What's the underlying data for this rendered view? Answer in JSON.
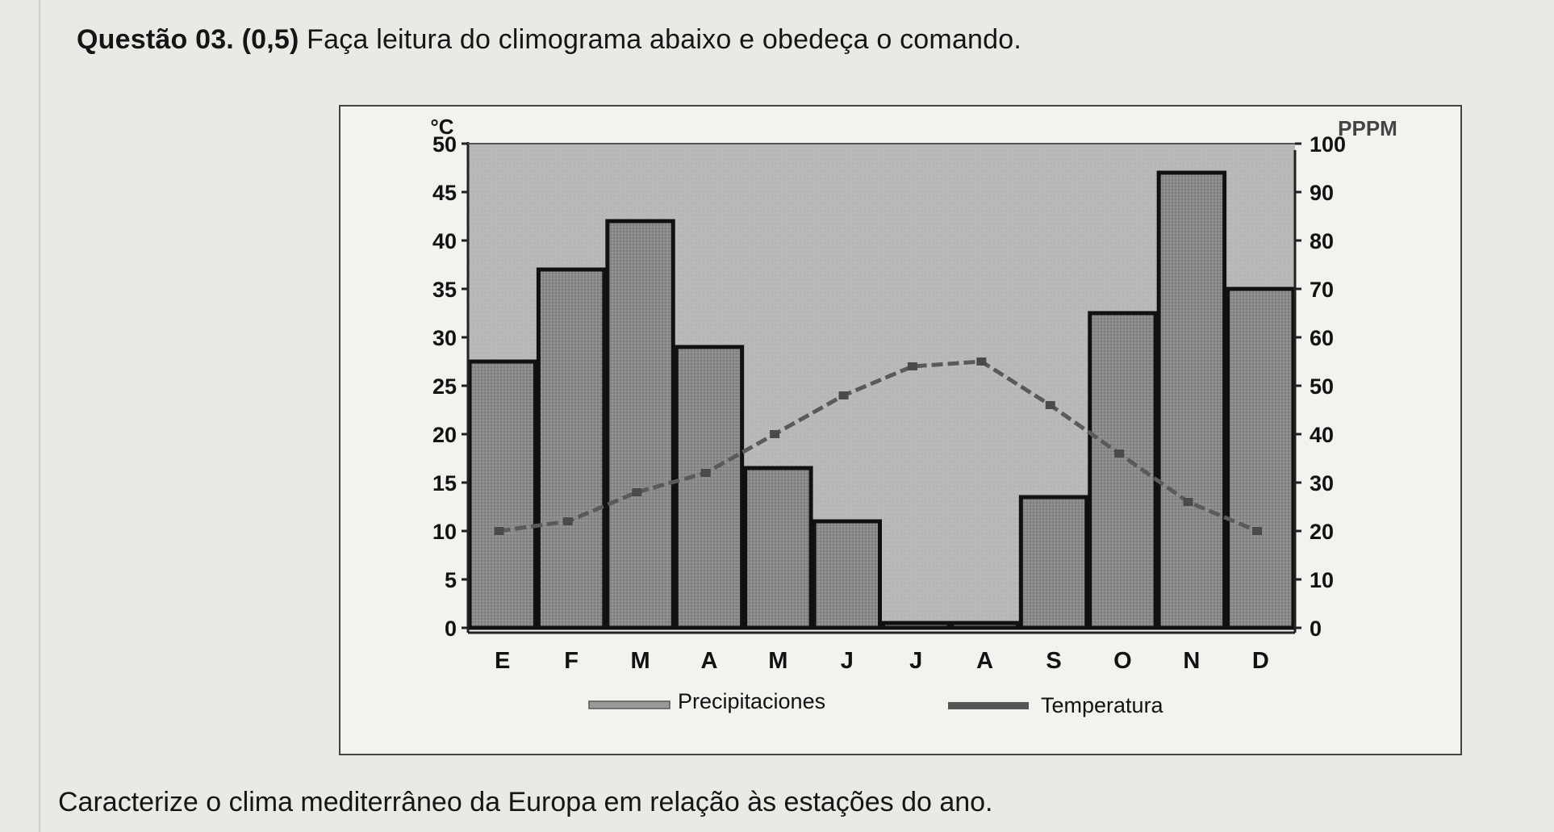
{
  "question": {
    "label": "Questão 03. (0,5)",
    "text": "Faça leitura do climograma abaixo e obedeça o comando."
  },
  "prompt": "Caracterize o clima mediterrâneo da Europa em relação às estações do ano.",
  "chart_data": {
    "type": "bar",
    "categories": [
      "E",
      "F",
      "M",
      "A",
      "M",
      "J",
      "J",
      "A",
      "S",
      "O",
      "N",
      "D"
    ],
    "y_left": {
      "label": "°C",
      "ylim": [
        0,
        50
      ],
      "ticks": [
        "0",
        "5",
        "10",
        "15",
        "20",
        "25",
        "30",
        "35",
        "40",
        "45",
        "50"
      ]
    },
    "y_right": {
      "label": "PPPM",
      "ylim": [
        0,
        100
      ],
      "ticks": [
        "0",
        "10",
        "20",
        "30",
        "40",
        "50",
        "60",
        "70",
        "80",
        "90",
        "100"
      ]
    },
    "series": [
      {
        "name": "Precipitaciones",
        "kind": "bar",
        "axis": "right",
        "values": [
          55,
          74,
          84,
          58,
          33,
          22,
          1,
          1,
          27,
          65,
          94,
          70
        ]
      },
      {
        "name": "Temperatura",
        "kind": "line",
        "axis": "left",
        "values": [
          10,
          11,
          14,
          16,
          20,
          24,
          27,
          27.5,
          23,
          18,
          13,
          10
        ]
      }
    ],
    "grid": false,
    "legend": "bottom",
    "colors": {
      "bar_fill": "#8a8a8a",
      "bar_stroke": "#111111",
      "line": "#5a5a5a",
      "plot_bg": "#b9b9b9"
    }
  }
}
